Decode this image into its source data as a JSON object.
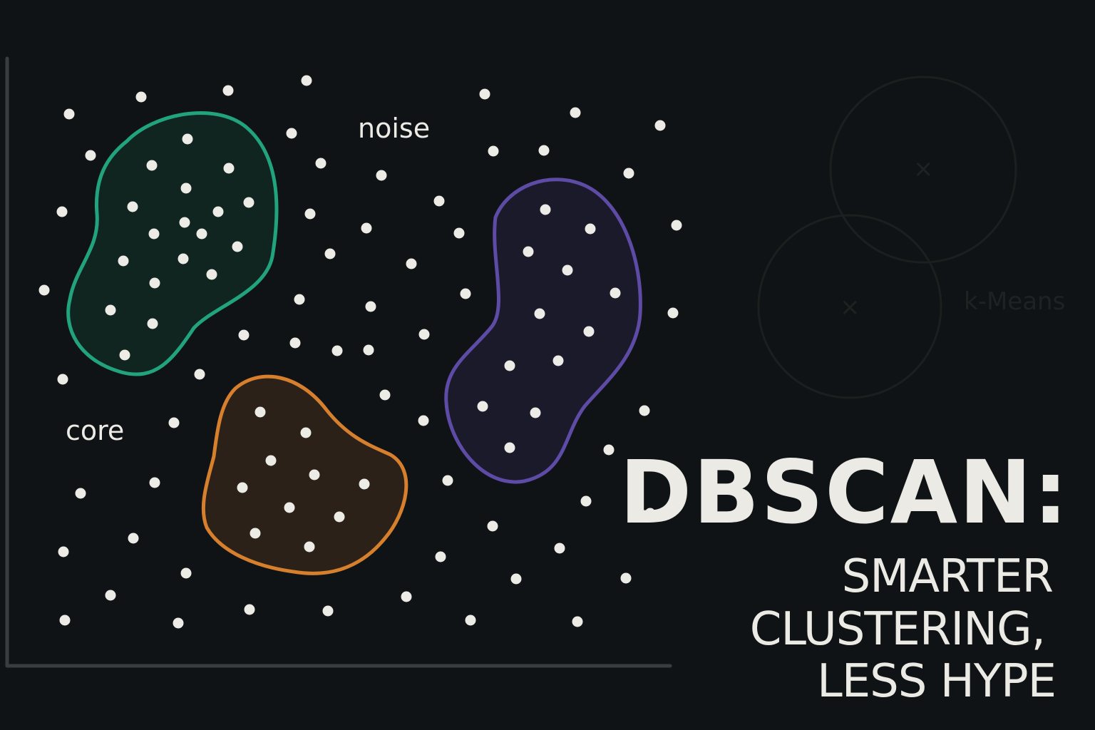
{
  "labels": {
    "noise": "noise",
    "core": "core"
  },
  "headline": {
    "line1": "DBSCAN:",
    "line2": "SMARTER",
    "line3": "CLUSTERING,",
    "line4": "LESS HYPE"
  },
  "ghost": {
    "label": "k-Means",
    "marker_glyph": "×"
  },
  "colors": {
    "background": "#101316",
    "point": "#ecebe6",
    "axis": "#3a3d40",
    "cluster_green": "#21a37e",
    "cluster_orange": "#d67f2c",
    "cluster_purple": "#5e4ba6",
    "ghost": "#1c2320"
  },
  "clusters": [
    {
      "name": "green-cluster",
      "color": "cluster_green"
    },
    {
      "name": "orange-cluster",
      "color": "cluster_orange"
    },
    {
      "name": "purple-cluster",
      "color": "cluster_purple"
    }
  ]
}
